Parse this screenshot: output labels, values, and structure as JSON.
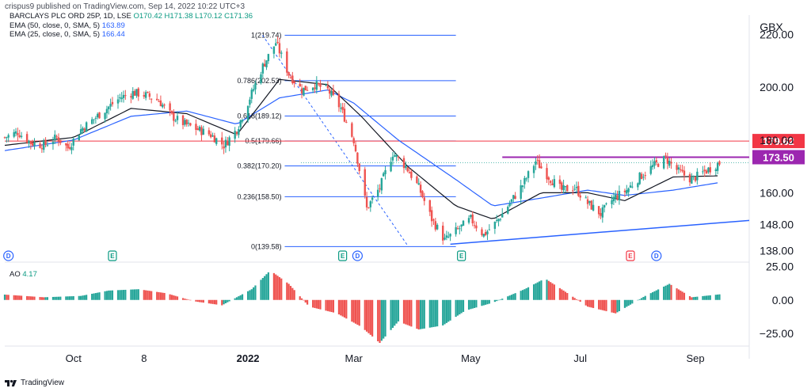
{
  "header": {
    "publisher": "crispus9 published on TradingView.com, Sep 14, 2022 10:22 UTC+3"
  },
  "legend": {
    "symbol": "BARCLAYS PLC ORD 25P, 1D, LSE",
    "ohlc": "O170.42 H171.38 L170.12 C171.36",
    "ema1_label": "EMA (50, close, 0, SMA, 5)",
    "ema1_value": "163.89",
    "ema2_label": "EMA (25, close, 0, SMA, 5)",
    "ema2_value": "166.44"
  },
  "ao_legend": {
    "label": "AO",
    "value": "4.17"
  },
  "footer": {
    "brand": "TradingView"
  },
  "colors": {
    "up": "#26a69a",
    "down": "#ef5350",
    "ema50": "#2962ff",
    "ema25": "#131722",
    "fib": "#2962ff",
    "resistance": "#f23645",
    "support_purple": "#9c27b0",
    "trend": "#2962ff"
  },
  "chart_data": [
    {
      "type": "candlestick",
      "title": "BARCLAYS PLC ORD 25P, 1D, LSE",
      "currency": "GBX",
      "ylim": [
        134,
        225
      ],
      "y_ticks": [
        "220.00",
        "200.00",
        "180.00",
        "160.00",
        "148.00",
        "138.00"
      ],
      "y_tick_values": [
        220,
        200,
        180,
        160,
        148,
        138
      ],
      "x_ticks": [
        "Oct",
        "8",
        "2022",
        "Mar",
        "May",
        "Jul",
        "Sep"
      ],
      "x_tick_dates": [
        "2021-10-01",
        "2021-11-08",
        "2022-01-03",
        "2022-03-01",
        "2022-05-03",
        "2022-07-01",
        "2022-09-01"
      ],
      "x_range": [
        "2021-08-25",
        "2022-09-30"
      ],
      "close_trend": [
        [
          "2021-08-25",
          181
        ],
        [
          "2021-09-01",
          183
        ],
        [
          "2021-09-08",
          179
        ],
        [
          "2021-09-15",
          178
        ],
        [
          "2021-09-22",
          181
        ],
        [
          "2021-09-28",
          177
        ],
        [
          "2021-10-05",
          184
        ],
        [
          "2021-10-12",
          188
        ],
        [
          "2021-10-19",
          192
        ],
        [
          "2021-10-26",
          196
        ],
        [
          "2021-11-02",
          198
        ],
        [
          "2021-11-09",
          197
        ],
        [
          "2021-11-16",
          195
        ],
        [
          "2021-11-23",
          189
        ],
        [
          "2021-11-30",
          186
        ],
        [
          "2021-12-07",
          184
        ],
        [
          "2021-12-14",
          182
        ],
        [
          "2021-12-21",
          178
        ],
        [
          "2021-12-28",
          184
        ],
        [
          "2022-01-04",
          196
        ],
        [
          "2022-01-11",
          208
        ],
        [
          "2022-01-18",
          217
        ],
        [
          "2022-01-25",
          205
        ],
        [
          "2022-02-01",
          199
        ],
        [
          "2022-02-08",
          201
        ],
        [
          "2022-02-15",
          199
        ],
        [
          "2022-02-22",
          192
        ],
        [
          "2022-03-01",
          180
        ],
        [
          "2022-03-08",
          154
        ],
        [
          "2022-03-15",
          162
        ],
        [
          "2022-03-22",
          175
        ],
        [
          "2022-03-29",
          170
        ],
        [
          "2022-04-05",
          162
        ],
        [
          "2022-04-12",
          150
        ],
        [
          "2022-04-19",
          142
        ],
        [
          "2022-04-26",
          146
        ],
        [
          "2022-05-03",
          150
        ],
        [
          "2022-05-10",
          144
        ],
        [
          "2022-05-17",
          149
        ],
        [
          "2022-05-24",
          156
        ],
        [
          "2022-05-31",
          163
        ],
        [
          "2022-06-07",
          172
        ],
        [
          "2022-06-14",
          166
        ],
        [
          "2022-06-21",
          161
        ],
        [
          "2022-06-28",
          162
        ],
        [
          "2022-07-05",
          156
        ],
        [
          "2022-07-12",
          152
        ],
        [
          "2022-07-19",
          158
        ],
        [
          "2022-07-26",
          161
        ],
        [
          "2022-08-02",
          166
        ],
        [
          "2022-08-09",
          170
        ],
        [
          "2022-08-16",
          173
        ],
        [
          "2022-08-23",
          168
        ],
        [
          "2022-08-30",
          165
        ],
        [
          "2022-09-06",
          168
        ],
        [
          "2022-09-14",
          171.36
        ]
      ],
      "ema50_trend": [
        [
          "2021-08-25",
          176
        ],
        [
          "2021-10-01",
          180
        ],
        [
          "2021-11-01",
          189
        ],
        [
          "2021-12-01",
          191
        ],
        [
          "2021-12-28",
          186
        ],
        [
          "2022-01-20",
          196
        ],
        [
          "2022-02-15",
          199
        ],
        [
          "2022-03-01",
          194
        ],
        [
          "2022-03-25",
          180
        ],
        [
          "2022-04-25",
          165
        ],
        [
          "2022-05-15",
          155
        ],
        [
          "2022-06-10",
          158
        ],
        [
          "2022-07-05",
          161
        ],
        [
          "2022-07-25",
          159
        ],
        [
          "2022-08-20",
          161
        ],
        [
          "2022-09-14",
          163.89
        ]
      ],
      "ema25_trend": [
        [
          "2021-08-25",
          178
        ],
        [
          "2021-10-01",
          181
        ],
        [
          "2021-11-01",
          192
        ],
        [
          "2021-12-01",
          190
        ],
        [
          "2021-12-28",
          182
        ],
        [
          "2022-01-20",
          203
        ],
        [
          "2022-02-15",
          201
        ],
        [
          "2022-03-05",
          189
        ],
        [
          "2022-03-30",
          170
        ],
        [
          "2022-04-25",
          155
        ],
        [
          "2022-05-15",
          150
        ],
        [
          "2022-06-10",
          160
        ],
        [
          "2022-07-05",
          160
        ],
        [
          "2022-07-25",
          157
        ],
        [
          "2022-08-20",
          166
        ],
        [
          "2022-09-14",
          166.44
        ]
      ],
      "fibonacci": [
        {
          "label": "1(219.74)",
          "value": 219.74
        },
        {
          "label": "0.786(202.53)",
          "value": 202.53
        },
        {
          "label": "0.618(189.12)",
          "value": 189.12
        },
        {
          "label": "0.5(179.66)",
          "value": 179.66
        },
        {
          "label": "0.382(170.20)",
          "value": 170.2
        },
        {
          "label": "0.236(158.50)",
          "value": 158.5
        },
        {
          "label": "0(139.58)",
          "value": 139.58
        }
      ],
      "fib_range": [
        "2022-01-10",
        "2022-04-25"
      ],
      "horizontal_lines": [
        {
          "label": "179.62",
          "value": 179.62,
          "from": "2021-08-25"
        },
        {
          "label": "173.50",
          "value": 173.5,
          "from": "2022-05-20"
        }
      ],
      "trendline": [
        [
          "2022-04-22",
          140.5
        ],
        [
          "2022-09-30",
          149.5
        ]
      ],
      "event_markers": [
        {
          "letter": "D",
          "date": "2021-08-27",
          "kind": "dividend"
        },
        {
          "letter": "E",
          "date": "2021-10-22",
          "kind": "earnings"
        },
        {
          "letter": "E",
          "date": "2022-02-23",
          "kind": "earnings"
        },
        {
          "letter": "D",
          "date": "2022-03-03",
          "kind": "dividend"
        },
        {
          "letter": "E",
          "date": "2022-04-28",
          "kind": "earnings"
        },
        {
          "letter": "E",
          "date": "2022-07-28",
          "kind": "earnings-negative"
        },
        {
          "letter": "D",
          "date": "2022-08-11",
          "kind": "dividend"
        }
      ],
      "price_unit_label": "GBX"
    },
    {
      "type": "histogram",
      "title": "AO",
      "ylim": [
        -32,
        27
      ],
      "y_ticks": [
        "25.00",
        "0.00",
        "−25.00"
      ],
      "y_tick_values": [
        25,
        0,
        -25
      ],
      "trend": [
        [
          "2021-08-25",
          4
        ],
        [
          "2021-09-15",
          2
        ],
        [
          "2021-10-05",
          3
        ],
        [
          "2021-10-20",
          7
        ],
        [
          "2021-11-05",
          8
        ],
        [
          "2021-11-20",
          5
        ],
        [
          "2021-12-05",
          -1
        ],
        [
          "2021-12-20",
          -4
        ],
        [
          "2022-01-05",
          8
        ],
        [
          "2022-01-15",
          22
        ],
        [
          "2022-01-25",
          12
        ],
        [
          "2022-02-05",
          -5
        ],
        [
          "2022-02-20",
          -10
        ],
        [
          "2022-03-05",
          -20
        ],
        [
          "2022-03-15",
          -32
        ],
        [
          "2022-03-25",
          -16
        ],
        [
          "2022-04-05",
          -22
        ],
        [
          "2022-04-18",
          -19
        ],
        [
          "2022-04-30",
          -8
        ],
        [
          "2022-05-15",
          -2
        ],
        [
          "2022-06-01",
          8
        ],
        [
          "2022-06-12",
          16
        ],
        [
          "2022-06-22",
          7
        ],
        [
          "2022-07-05",
          -5
        ],
        [
          "2022-07-20",
          -10
        ],
        [
          "2022-08-05",
          3
        ],
        [
          "2022-08-18",
          12
        ],
        [
          "2022-08-30",
          2
        ],
        [
          "2022-09-14",
          4.17
        ]
      ]
    }
  ]
}
